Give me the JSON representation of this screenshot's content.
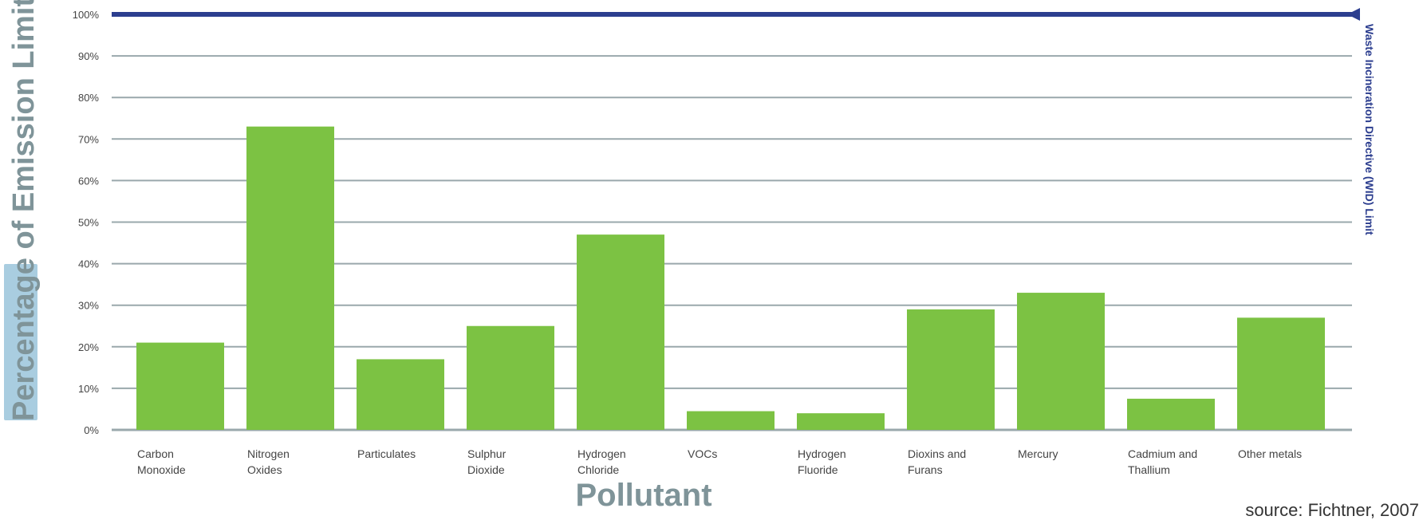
{
  "chart_data": {
    "type": "bar",
    "ylabel": "Percentage of Emission Limit",
    "xlabel": "Pollutant",
    "source": "source: Fichtner, 2007",
    "ylim": [
      0,
      100
    ],
    "yticks": [
      "0%",
      "10%",
      "20%",
      "30%",
      "40%",
      "50%",
      "60%",
      "70%",
      "80%",
      "90%",
      "100%"
    ],
    "grid": true,
    "categories": [
      [
        "Carbon",
        "Monoxide"
      ],
      [
        "Nitrogen",
        "Oxides"
      ],
      [
        "Particulates"
      ],
      [
        "Sulphur",
        "Dioxide"
      ],
      [
        "Hydrogen",
        "Chloride"
      ],
      [
        "VOCs"
      ],
      [
        "Hydrogen",
        "Fluoride"
      ],
      [
        "Dioxins and",
        "Furans"
      ],
      [
        "Mercury"
      ],
      [
        "Cadmium and",
        "Thallium"
      ],
      [
        "Other metals"
      ]
    ],
    "values": [
      21,
      73,
      17,
      25,
      47,
      4.5,
      4,
      29,
      33,
      7.5,
      27
    ],
    "reference_line": {
      "value": 100,
      "label": "Waste Incineration Directive (WID) Limit"
    },
    "colors": {
      "bar": "#7cc243",
      "reference": "#2c3e8f",
      "grid": "#9aa8ac",
      "axis_title": "#7f9499",
      "ylabel_highlight": "#a9cde0"
    }
  }
}
